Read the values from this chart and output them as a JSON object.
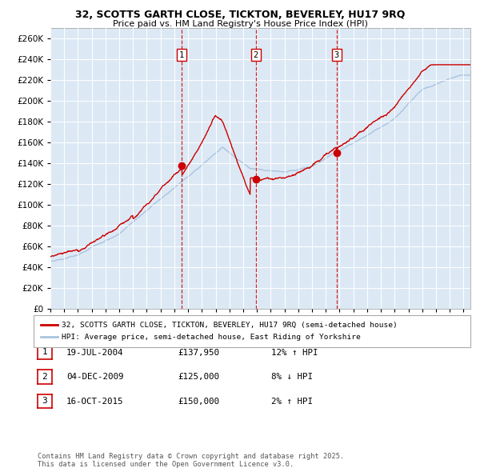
{
  "title1": "32, SCOTTS GARTH CLOSE, TICKTON, BEVERLEY, HU17 9RQ",
  "title2": "Price paid vs. HM Land Registry's House Price Index (HPI)",
  "legend1": "32, SCOTTS GARTH CLOSE, TICKTON, BEVERLEY, HU17 9RQ (semi-detached house)",
  "legend2": "HPI: Average price, semi-detached house, East Riding of Yorkshire",
  "transactions": [
    {
      "num": 1,
      "date": "19-JUL-2004",
      "price": 137950,
      "year": 2004.54,
      "pct": "12%",
      "dir": "↑"
    },
    {
      "num": 2,
      "date": "04-DEC-2009",
      "price": 125000,
      "year": 2009.92,
      "pct": "8%",
      "dir": "↓"
    },
    {
      "num": 3,
      "date": "16-OCT-2015",
      "price": 150000,
      "year": 2015.79,
      "pct": "2%",
      "dir": "↑"
    }
  ],
  "ylabel_vals": [
    0,
    20000,
    40000,
    60000,
    80000,
    100000,
    120000,
    140000,
    160000,
    180000,
    200000,
    220000,
    240000,
    260000
  ],
  "ylim": [
    0,
    270000
  ],
  "xlim": [
    1995,
    2025.5
  ],
  "background_color": "#dce9f5",
  "grid_color": "#ffffff",
  "red_line_color": "#cc0000",
  "blue_line_color": "#aac4e0",
  "fig_background": "#ffffff",
  "footnote": "Contains HM Land Registry data © Crown copyright and database right 2025.\nThis data is licensed under the Open Government Licence v3.0."
}
